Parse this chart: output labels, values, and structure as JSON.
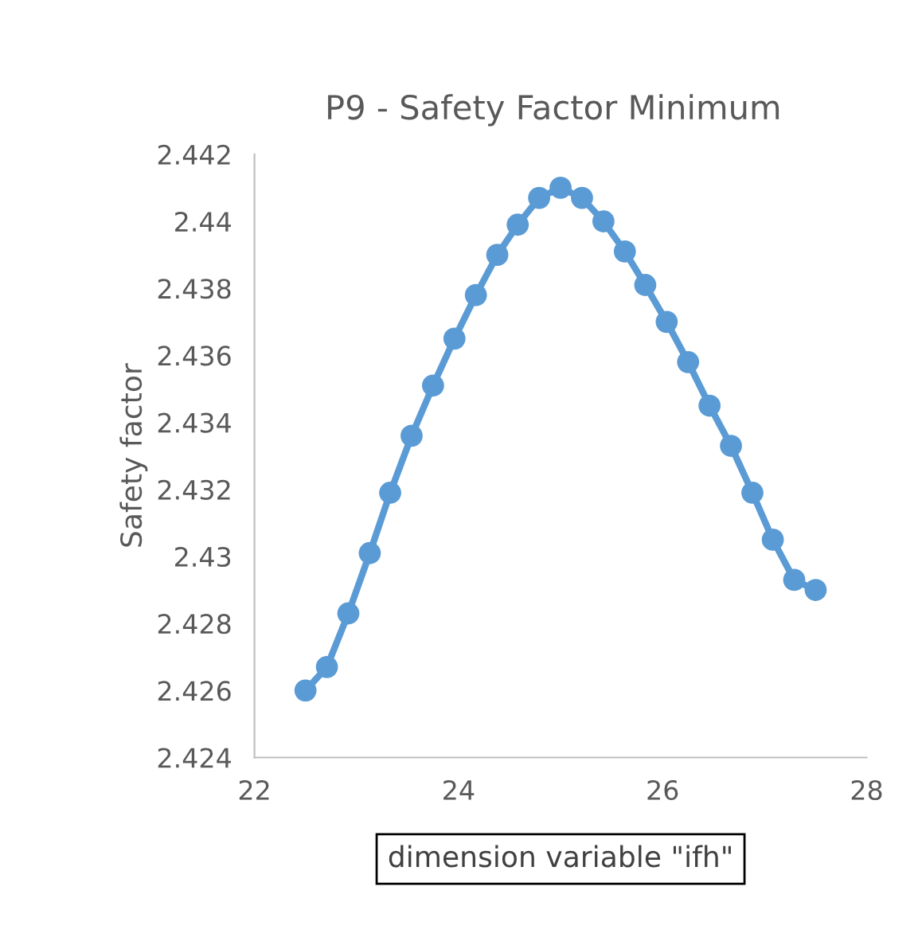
{
  "chart_data": {
    "type": "line",
    "title": "P9 - Safety Factor Minimum",
    "xlabel": "dimension variable \"ifh\"",
    "ylabel": "Safety factor",
    "x": [
      22.5,
      22.71,
      22.92,
      23.13,
      23.33,
      23.54,
      23.75,
      23.96,
      24.17,
      24.38,
      24.58,
      24.79,
      25,
      25.21,
      25.42,
      25.63,
      25.83,
      26.04,
      26.25,
      26.46,
      26.67,
      26.88,
      27.08,
      27.29,
      27.5
    ],
    "series": [
      {
        "color": "#5b9bd5",
        "values": [
          2.426,
          2.4267,
          2.4283,
          2.4301,
          2.4319,
          2.4336,
          2.4351,
          2.4365,
          2.4378,
          2.439,
          2.4399,
          2.4407,
          2.441,
          2.4407,
          2.44,
          2.4391,
          2.4381,
          2.437,
          2.4358,
          2.4345,
          2.4333,
          2.4319,
          2.4305,
          2.4293,
          2.429
        ]
      }
    ],
    "xlim": [
      22,
      28
    ],
    "xticks": [
      22,
      24,
      26,
      28
    ],
    "ylim": [
      2.424,
      2.442
    ],
    "yticks": [
      2.424,
      2.426,
      2.428,
      2.43,
      2.432,
      2.434,
      2.436,
      2.438,
      2.44,
      2.442
    ],
    "grid": false,
    "legend": false,
    "marker": "circle",
    "line_style": "solid"
  }
}
